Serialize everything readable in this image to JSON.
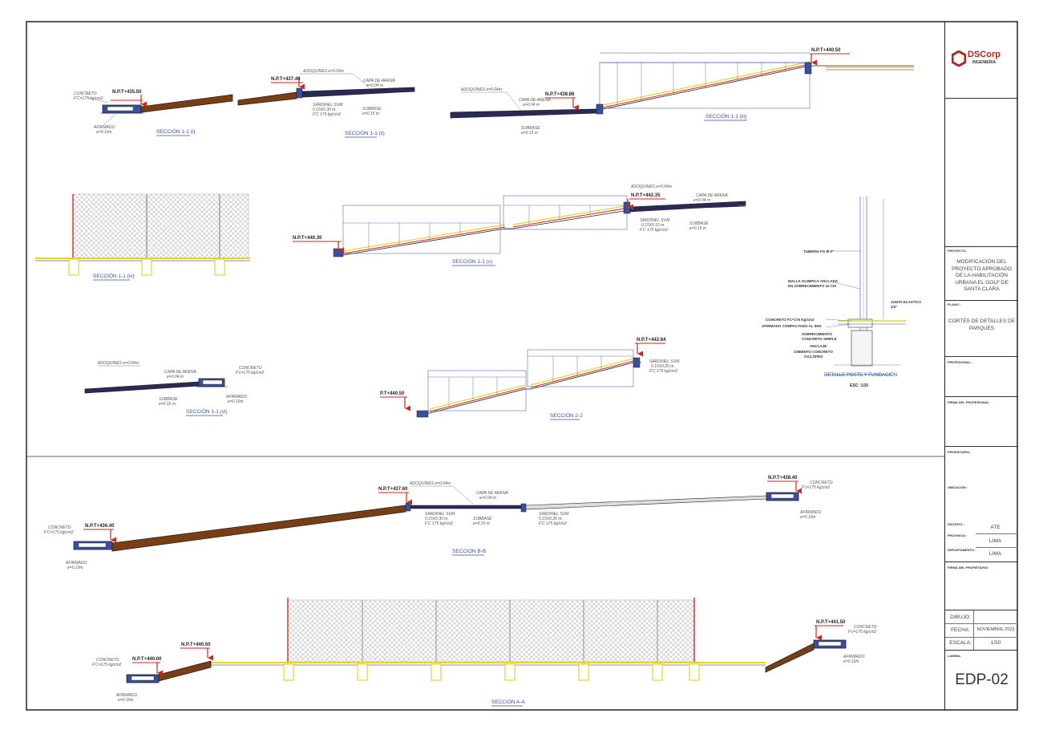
{
  "sections": {
    "s1_1_i": {
      "title": "SECCIÓN 1-1 (i)",
      "npt": "N.P.T+435.50",
      "concrete": "CONCRETO",
      "concrete_fc": "F'C=175 kg/cm2",
      "afirmado": "AFIRMADO",
      "afirmado_e": "e=0.10m"
    },
    "s1_1_ii": {
      "title": "SECCION 1-1 (ii)",
      "npt": "N.P.T+437.40",
      "adoquines": "ADOQUINES e=0.04m",
      "capa": "CAPA DE ARENA",
      "capa_e": "e=0.04 m",
      "sardinel": "SARDINEL SUM",
      "sardinel_d": "0.15X0.30 m.",
      "sardinel_fc": "F'C 175 kg/cm2",
      "subbase": "SUBBASE",
      "subbase_e": "e=0.15 m"
    },
    "s1_1_iii": {
      "title": "SECCIÓN 1-1 (iii)",
      "npt_low": "N.P.T+438.86",
      "npt_high": "N.P.T+440.50",
      "adoquines": "ADOQUINES e=0.04m",
      "capa": "CAPA DE ARENA",
      "capa_e": "e=0.04 m",
      "subbase": "SUBBASE",
      "subbase_e": "e=0.15 m"
    },
    "s1_1_iv": {
      "title": "SECCIÓN 1-1 (iv)"
    },
    "s1_1_v": {
      "title": "SECCIÓN 1-1 (v)",
      "npt_low": "N.P.T+440.30",
      "npt_high": "N.P.T+442.35",
      "adoquines": "ADOQUINES e=0.04m",
      "capa": "CAPA DE ARENA",
      "capa_e": "e=0.04 m",
      "sardinel": "SARDINEL SUM",
      "sardinel_d": "0.15X0.15 m.",
      "sardinel_fc": "F'C 175 kg/cm2",
      "subbase": "SUBBASE",
      "subbase_e": "e=0.15 m"
    },
    "s1_1_vi": {
      "title": "SECCIÓN 1-1 (vi)",
      "adoquines": "ADOQUINES e=0.04m",
      "capa": "CAPA DE ARENA",
      "capa_e": "e=0.04 m",
      "concrete": "CONCRETO",
      "concrete_fc": "F'c=175 kg/cm2",
      "subbase": "SUBBASE",
      "subbase_e": "e=0.15 m",
      "afirmado": "AFIRMADO",
      "afirmado_e": "e=0.10m"
    },
    "s2_2": {
      "title": "SECCIÓN 2-2",
      "npt_low": "P.T+440.50",
      "npt_high": "N.P.T+442.84",
      "sardinel": "SARDINEL SUM",
      "sardinel_d": "0.15X0.25 m.",
      "sardinel_fc": "F'C 175 kg/cm2"
    },
    "sB": {
      "title": "SECCION B-B",
      "npt_left": "N.P.T+436.40",
      "npt_mid": "N.P.T+437.60",
      "npt_right": "N.P.T+438.40",
      "adoquines": "ADOQUINES e=0.04m",
      "capa": "CAPA DE ARENA",
      "capa_e": "e=0.04 m",
      "sardinel1": "SARDINEL SUM",
      "sardinel1_d": "0.15X0.30 m.",
      "sardinel1_fc": "F'C 175 kg/cm2",
      "subbase": "SUBBASE",
      "subbase_e": "e=0.15 m",
      "sardinel2": "SARDINEL SUM",
      "sardinel2_d": "0.15X0.30 m.",
      "sardinel2_fc": "F'C 175 kg/cm2",
      "concrete_l": "CONCRETO",
      "concrete_l_fc": "F'C=175 kg/cm2",
      "afirmado_l": "AFIRMADO",
      "afirmado_l_e": "e=0.10m",
      "concrete_r": "CONCRETO",
      "concrete_r_fc": "F'c=175 kg/cm2",
      "afirmado_r": "AFIRMADO",
      "afirmado_r_e": "e=0.10m"
    },
    "sA": {
      "title": "SECCIÓN A-A",
      "npt_1": "N.P.T+440.00",
      "npt_2": "N.P.T+440.50",
      "npt_3": "N.P.T+441.50",
      "concrete_l": "CONCRETO",
      "concrete_l_fc": "F'C=175 kg/cm2",
      "afirmado_l": "AFIRMADO",
      "afirmado_l_e": "e=0.10m",
      "concrete_r": "CONCRETO",
      "concrete_r_fc": "F'c=175 kg/cm2",
      "afirmado_r": "AFIRMADO",
      "afirmado_r_e": "e=0.10m"
    },
    "detalle": {
      "title": "DETALLE POSTE Y FUNDACIÓN",
      "scale": "ESC: 1/25",
      "tuberia": "TUBERIA FG Ø 3\"",
      "malla1": "MALLA OLIMPICA ANCLADA",
      "malla2": "EN SOBRECIMIENTO 10 CM",
      "junta": "JUNTA ELASTICA",
      "junta_d": "1/2\"",
      "concreto": "CONCRETO FC=175 Kg/cm2",
      "afirmado": "AFIRMADO COMPACTADO AL 95%",
      "sobrecimiento": "SOBRECIMIENTO",
      "sobre_d": "CONCRETO SIMPLE",
      "anclaje": "ANCLAJE",
      "cimiento": "CIMIENTO CONCRETO",
      "cimiento_d": "CICLÓPEO"
    }
  },
  "title_block": {
    "logo_brand": "DSCorp",
    "logo_sub": "INGENIERIA",
    "proyecto_head": "PROYECTO:",
    "proyecto": "MODIFICACIÓN DEL PROYECTO APROBADO DE LA HABILITACIÓN URBANA EL GOLF DE SANTA CLARA",
    "plano_head": "PLANO :",
    "plano": "CORTES DE DETALLES DE PARQUES",
    "profesional_head": "PROFESIONAL :",
    "firma_prof_head": "FIRMA DEL PROFESIONAL:",
    "propietario_head": "PROPIETARIO:",
    "ubicacion_head": "UBICACIÓN :",
    "distrito_head": "DISTRITO :",
    "distrito": "ATE",
    "provincia_head": "PROVINCIA :",
    "provincia": "LIMA",
    "departamento_head": "DEPARTAMENTO :",
    "departamento": "LIMA",
    "firma_prop_head": "FIRMA DEL PROPIETARIO:",
    "dibujo_head": "DIBUJO:",
    "fecha_head": "FECHA:",
    "fecha": "NOVIEMBRE 2023",
    "escala_head": "ESCALA:",
    "escala": "1/50",
    "lamina_head": "LAMINA:",
    "lamina": "EDP-02"
  },
  "colors": {
    "soil": "#7a3e14",
    "npt_arrow": "#d9221c",
    "line": "#333333",
    "yellow": "#e6d233",
    "blue": "#3a4fa0",
    "fence": "#b8b8b8",
    "post": "#d92626"
  }
}
